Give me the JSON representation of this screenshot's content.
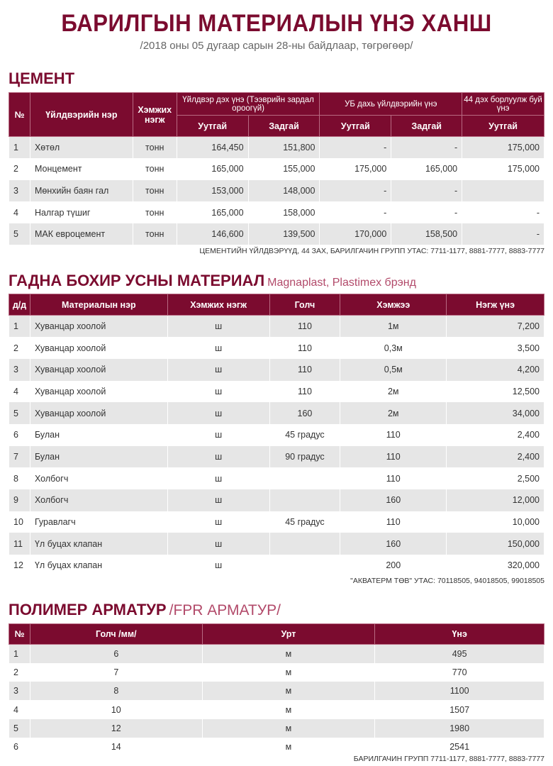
{
  "title": "БАРИЛГЫН МАТЕРИАЛЫН ҮНЭ ХАНШ",
  "subtitle": "/2018 оны 05 дугаар сарын 28-ны байдлаар, төгрөгөөр/",
  "cement": {
    "heading": "ЦЕМЕНТ",
    "headers": {
      "no": "№",
      "name": "Үйлдвэрийн нэр",
      "unit": "Хэмжих нэгж",
      "factory": "Үйлдвэр дэх үнэ (Тээврийн зардал ороогүй)",
      "ub": "УБ дахь үйлдвэрийн үнэ",
      "z44": "44 дэх борлуулж буй үнэ",
      "bagged": "Уутгай",
      "bulk": "Задгай"
    },
    "rows": [
      [
        "1",
        "Хөтөл",
        "тонн",
        "164,450",
        "151,800",
        "-",
        "-",
        "175,000"
      ],
      [
        "2",
        "Монцемент",
        "тонн",
        "165,000",
        "155,000",
        "175,000",
        "165,000",
        "175,000"
      ],
      [
        "3",
        "Мөнхийн баян гал",
        "тонн",
        "153,000",
        "148,000",
        "-",
        "-",
        ""
      ],
      [
        "4",
        "Налгар түшиг",
        "тонн",
        "165,000",
        "158,000",
        "-",
        "-",
        "-"
      ],
      [
        "5",
        "МАК евроцемент",
        "тонн",
        "146,600",
        "139,500",
        "170,000",
        "158,500",
        "-"
      ]
    ],
    "note": "ЦЕМЕНТИЙН ҮЙЛДВЭРҮҮД, 44 ЗАХ, БАРИЛГАЧИН ГРУПП  УТАС: 7711-1177, 8881-7777, 8883-7777"
  },
  "sewer": {
    "heading": "ГАДНА БОХИР УСНЫ МАТЕРИАЛ",
    "subheading": "Magnaplast, Plastimex брэнд",
    "headers": [
      "д/д",
      "Материалын нэр",
      "Хэмжих нэгж",
      "Голч",
      "Хэмжээ",
      "Нэгж үнэ"
    ],
    "rows": [
      [
        "1",
        "Хуванцар хоолой",
        "ш",
        "110",
        "1м",
        "7,200"
      ],
      [
        "2",
        "Хуванцар хоолой",
        "ш",
        "110",
        "0,3м",
        "3,500"
      ],
      [
        "3",
        "Хуванцар хоолой",
        "ш",
        "110",
        "0,5м",
        "4,200"
      ],
      [
        "4",
        "Хуванцар хоолой",
        "ш",
        "110",
        "2м",
        "12,500"
      ],
      [
        "5",
        "Хуванцар хоолой",
        "ш",
        "160",
        "2м",
        "34,000"
      ],
      [
        "6",
        "Булан",
        "ш",
        "45 градус",
        "110",
        "2,400"
      ],
      [
        "7",
        "Булан",
        "ш",
        "90 градус",
        "110",
        "2,400"
      ],
      [
        "8",
        "Холбогч",
        "ш",
        "",
        "110",
        "2,500"
      ],
      [
        "9",
        "Холбогч",
        "ш",
        "",
        "160",
        "12,000"
      ],
      [
        "10",
        "Гуравлагч",
        "ш",
        "45 градус",
        "110",
        "10,000"
      ],
      [
        "11",
        "Үл буцах клапан",
        "ш",
        "",
        "160",
        "150,000"
      ],
      [
        "12",
        "Үл буцах клапан",
        "ш",
        "",
        "200",
        "320,000"
      ]
    ],
    "note": "\"АКВАТЕРМ ТӨВ\" УТАС: 70118505, 94018505, 99018505"
  },
  "polymer": {
    "heading": "ПОЛИМЕР АРМАТУР",
    "subheading": "/FPR АРМАТУР/",
    "headers": [
      "№",
      "Голч /мм/",
      "Урт",
      "Үнэ"
    ],
    "rows": [
      [
        "1",
        "6",
        "м",
        "495"
      ],
      [
        "2",
        "7",
        "м",
        "770"
      ],
      [
        "3",
        "8",
        "м",
        "1100"
      ],
      [
        "4",
        "10",
        "м",
        "1507"
      ],
      [
        "5",
        "12",
        "м",
        "1980"
      ],
      [
        "6",
        "14",
        "м",
        "2541"
      ]
    ],
    "note": "БАРИЛГАЧИН ГРУПП 7711-1177, 8881-7777, 8883-7777"
  },
  "colors": {
    "accent": "#7b0b2f",
    "row_alt": "#e6e6e6"
  }
}
